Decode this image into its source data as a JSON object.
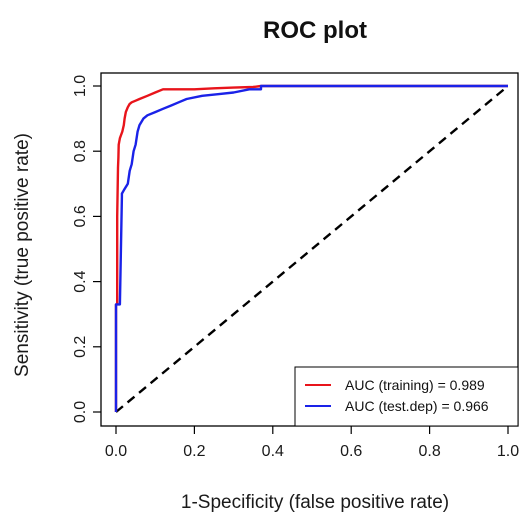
{
  "chart_data": {
    "type": "line",
    "title": "ROC plot",
    "xlabel": "1-Specificity (false positive rate)",
    "ylabel": "Sensitivity (true positive rate)",
    "xlim": [
      0,
      1
    ],
    "ylim": [
      0,
      1
    ],
    "xticks": [
      "0.0",
      "0.2",
      "0.4",
      "0.6",
      "0.8",
      "1.0"
    ],
    "yticks": [
      "0.0",
      "0.2",
      "0.4",
      "0.6",
      "0.8",
      "1.0"
    ],
    "grid": false,
    "legend_position": "bottom-right",
    "reference_line": {
      "x": [
        0,
        1
      ],
      "y": [
        0,
        1
      ],
      "color": "#000000",
      "style": "dashed"
    },
    "series": [
      {
        "name": "AUC (training) = 0.989",
        "color": "#e8141b",
        "x": [
          0,
          0,
          0.003,
          0.003,
          0.005,
          0.006,
          0.007,
          0.01,
          0.013,
          0.016,
          0.02,
          0.022,
          0.025,
          0.03,
          0.035,
          0.04,
          0.05,
          0.06,
          0.08,
          0.1,
          0.12,
          0.15,
          0.2,
          0.25,
          0.3,
          0.35,
          0.37,
          1
        ],
        "y": [
          0,
          0.33,
          0.33,
          0.6,
          0.75,
          0.78,
          0.82,
          0.84,
          0.85,
          0.86,
          0.88,
          0.9,
          0.92,
          0.935,
          0.945,
          0.95,
          0.955,
          0.96,
          0.97,
          0.98,
          0.99,
          0.99,
          0.99,
          0.993,
          0.995,
          0.997,
          1.0,
          1.0
        ]
      },
      {
        "name": "AUC (test.dep) = 0.966",
        "color": "#1a22e8",
        "x": [
          0,
          0,
          0.01,
          0.015,
          0.015,
          0.02,
          0.03,
          0.035,
          0.04,
          0.045,
          0.05,
          0.055,
          0.06,
          0.07,
          0.08,
          0.1,
          0.12,
          0.14,
          0.16,
          0.18,
          0.22,
          0.26,
          0.3,
          0.34,
          0.37,
          0.37,
          1
        ],
        "y": [
          0,
          0.33,
          0.33,
          0.66,
          0.67,
          0.68,
          0.7,
          0.74,
          0.76,
          0.8,
          0.82,
          0.86,
          0.88,
          0.9,
          0.91,
          0.92,
          0.93,
          0.94,
          0.95,
          0.96,
          0.97,
          0.975,
          0.98,
          0.99,
          0.99,
          1.0,
          1.0
        ]
      }
    ]
  }
}
